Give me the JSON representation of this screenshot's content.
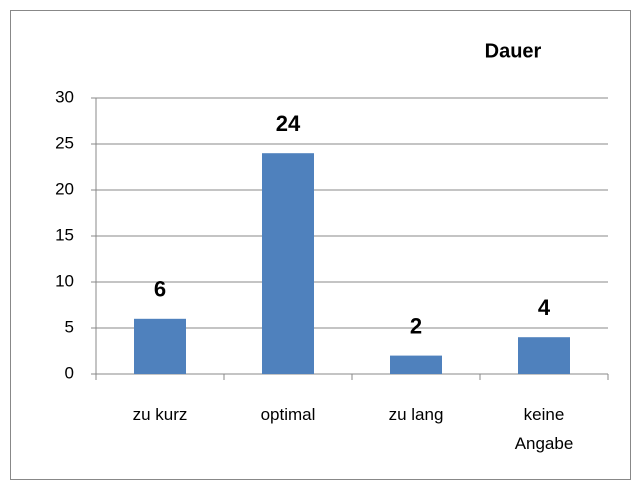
{
  "chart_data": {
    "type": "bar",
    "title": "Dauer",
    "categories": [
      "zu kurz",
      "optimal",
      "zu lang",
      "keine Angabe"
    ],
    "values": [
      6,
      24,
      2,
      4
    ],
    "color": "#4f81bd",
    "ylim": [
      0,
      30
    ],
    "yticks": [
      0,
      5,
      10,
      15,
      20,
      25,
      30
    ],
    "grid": true
  }
}
